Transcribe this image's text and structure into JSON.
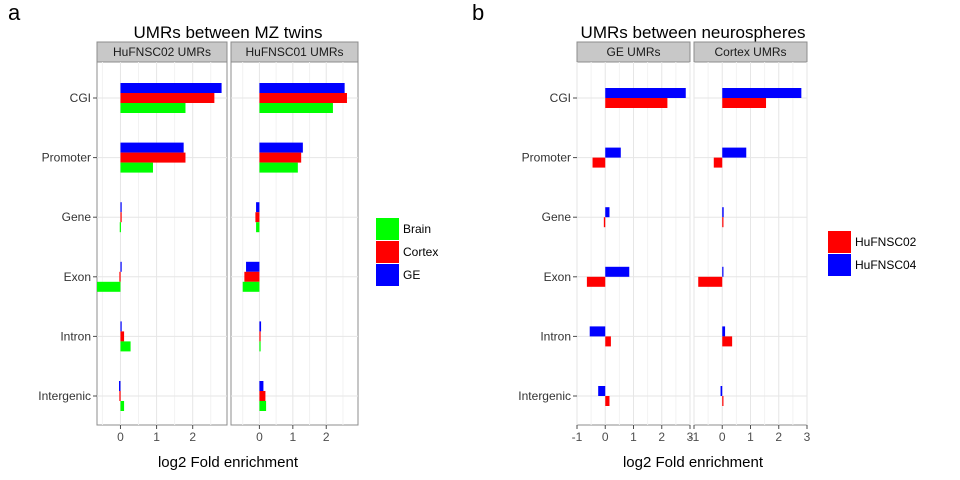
{
  "chart_data": [
    {
      "type": "bar",
      "orientation": "horizontal",
      "panel_letter": "a",
      "title": "UMRs between MZ twins",
      "xlabel": "log2 Fold enrichment",
      "ylabel": "",
      "categories": [
        "CGI",
        "Promoter",
        "Gene",
        "Exon",
        "Intron",
        "Intergenic"
      ],
      "legend": {
        "position": "right",
        "entries": [
          "Brain",
          "Cortex",
          "GE"
        ]
      },
      "colors": {
        "Brain": "#00ff00",
        "Cortex": "#ff0000",
        "GE": "#0000ff"
      },
      "grid": true,
      "facets": [
        {
          "label": "HuFNSC02 UMRs",
          "xlim": [
            -0.65,
            2.95
          ],
          "xticks": [
            "0",
            "1",
            "2"
          ],
          "series": [
            {
              "name": "GE",
              "values": [
                2.8,
                1.75,
                0.02,
                0.02,
                0.02,
                -0.04
              ]
            },
            {
              "name": "Cortex",
              "values": [
                2.6,
                1.8,
                0.03,
                -0.03,
                0.1,
                -0.03
              ]
            },
            {
              "name": "Brain",
              "values": [
                1.8,
                0.9,
                -0.02,
                -0.65,
                0.28,
                0.1
              ]
            }
          ]
        },
        {
          "label": "HuFNSC01 UMRs",
          "xlim": [
            -0.85,
            2.95
          ],
          "xticks": [
            "0",
            "1",
            "2"
          ],
          "series": [
            {
              "name": "GE",
              "values": [
                2.55,
                1.3,
                -0.1,
                -0.4,
                0.05,
                0.12
              ]
            },
            {
              "name": "Cortex",
              "values": [
                2.62,
                1.25,
                -0.12,
                -0.45,
                0.02,
                0.18
              ]
            },
            {
              "name": "Brain",
              "values": [
                2.2,
                1.15,
                -0.1,
                -0.5,
                0.02,
                0.2
              ]
            }
          ]
        }
      ]
    },
    {
      "type": "bar",
      "orientation": "horizontal",
      "panel_letter": "b",
      "title": "UMRs between neurospheres",
      "xlabel": "log2 Fold enrichment",
      "ylabel": "",
      "categories": [
        "CGI",
        "Promoter",
        "Gene",
        "Exon",
        "Intron",
        "Intergenic"
      ],
      "legend": {
        "position": "right",
        "entries": [
          "HuFNSC02",
          "HuFNSC04"
        ]
      },
      "colors": {
        "HuFNSC02": "#ff0000",
        "HuFNSC04": "#0000ff"
      },
      "grid": true,
      "facets": [
        {
          "label": "GE UMRs",
          "xlim": [
            -1,
            3
          ],
          "xticks": [
            "-1",
            "0",
            "1",
            "2",
            "3"
          ],
          "series": [
            {
              "name": "HuFNSC04",
              "values": [
                2.85,
                0.55,
                0.15,
                0.85,
                -0.55,
                -0.25
              ]
            },
            {
              "name": "HuFNSC02",
              "values": [
                2.2,
                -0.45,
                -0.05,
                -0.65,
                0.2,
                0.15
              ]
            }
          ]
        },
        {
          "label": "Cortex UMRs",
          "xlim": [
            -1,
            3
          ],
          "xticks": [
            "-1",
            "0",
            "1",
            "2",
            "3"
          ],
          "series": [
            {
              "name": "HuFNSC04",
              "values": [
                2.8,
                0.85,
                0.05,
                0.03,
                0.1,
                -0.06
              ]
            },
            {
              "name": "HuFNSC02",
              "values": [
                1.55,
                -0.3,
                0.0,
                -0.85,
                0.35,
                0.02
              ]
            }
          ]
        }
      ]
    }
  ]
}
